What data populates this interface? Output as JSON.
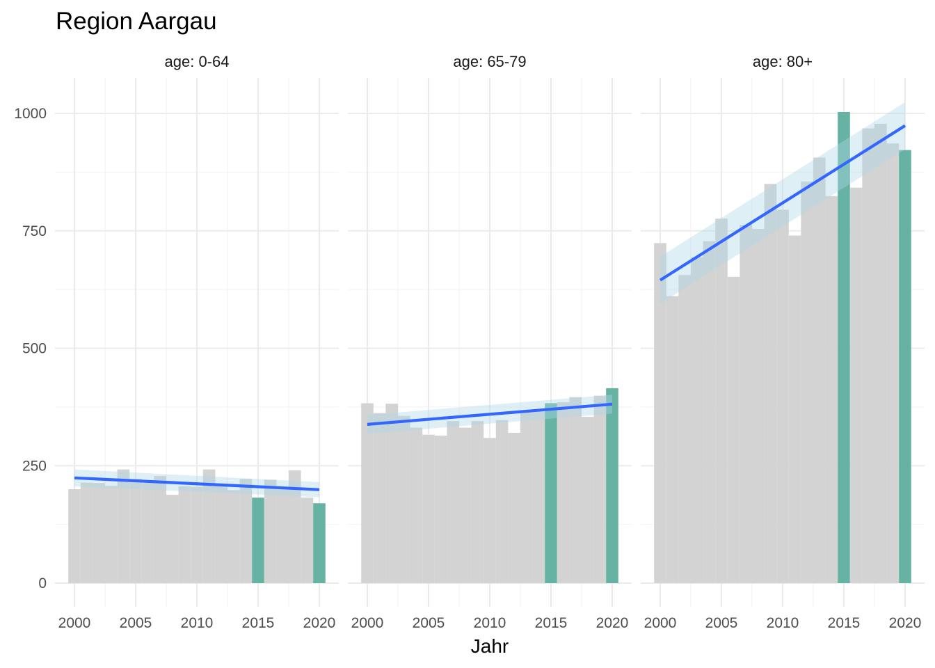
{
  "chart_data": {
    "type": "bar",
    "title": "Region Aargau",
    "xlabel": "Jahr",
    "ylabel": "",
    "ylim": [
      0,
      1050
    ],
    "yticks": [
      0,
      250,
      500,
      750,
      1000
    ],
    "xticks": [
      2000,
      2005,
      2010,
      2015,
      2020
    ],
    "highlight_years": [
      2015,
      2020
    ],
    "colors": {
      "bar": "#d3d3d3",
      "highlight": "#66b3a3",
      "trend": "#3366ff",
      "ribbon": "#add8e6"
    },
    "panels": [
      {
        "label": "age: 0-64",
        "years": [
          2000,
          2001,
          2002,
          2003,
          2004,
          2005,
          2006,
          2007,
          2008,
          2009,
          2010,
          2011,
          2012,
          2013,
          2014,
          2015,
          2016,
          2017,
          2018,
          2019,
          2020
        ],
        "values": [
          200,
          214,
          213,
          207,
          242,
          222,
          213,
          228,
          188,
          206,
          205,
          242,
          208,
          198,
          222,
          182,
          220,
          203,
          240,
          182,
          170
        ],
        "trend": {
          "start": 224,
          "end": 199,
          "band_start": 18,
          "band_end": 16
        }
      },
      {
        "label": "age: 65-79",
        "years": [
          2000,
          2001,
          2002,
          2003,
          2004,
          2005,
          2006,
          2007,
          2008,
          2009,
          2010,
          2011,
          2012,
          2013,
          2014,
          2015,
          2016,
          2017,
          2018,
          2019,
          2020
        ],
        "values": [
          383,
          362,
          382,
          356,
          331,
          316,
          314,
          345,
          331,
          345,
          309,
          347,
          320,
          366,
          369,
          383,
          385,
          396,
          354,
          399,
          415
        ],
        "trend": {
          "start": 338,
          "end": 381,
          "band_start": 20,
          "band_end": 20
        }
      },
      {
        "label": "age: 80+",
        "years": [
          2000,
          2001,
          2002,
          2003,
          2004,
          2005,
          2006,
          2007,
          2008,
          2009,
          2010,
          2011,
          2012,
          2013,
          2014,
          2015,
          2016,
          2017,
          2018,
          2019,
          2020
        ],
        "values": [
          724,
          611,
          656,
          694,
          728,
          776,
          652,
          763,
          754,
          850,
          795,
          740,
          855,
          906,
          824,
          1003,
          842,
          968,
          978,
          936,
          922
        ],
        "trend": {
          "start": 645,
          "end": 974,
          "band_start": 50,
          "band_end": 50
        }
      }
    ]
  }
}
